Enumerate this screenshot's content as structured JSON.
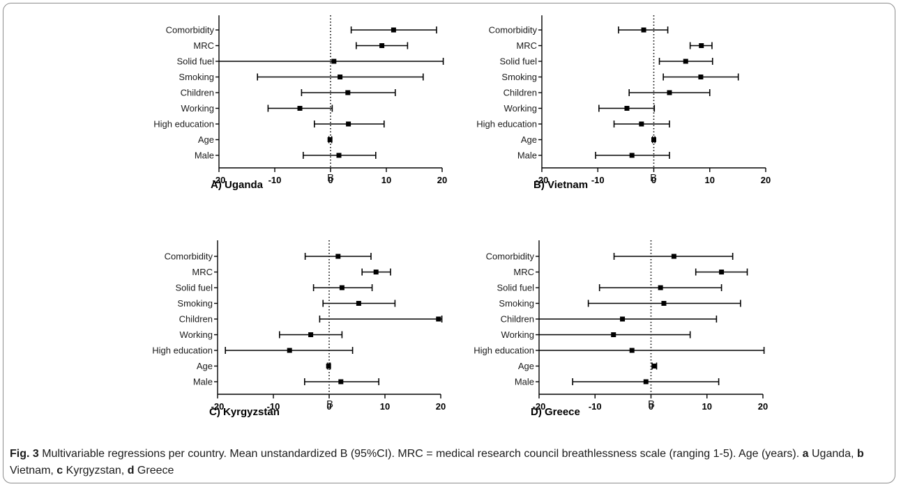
{
  "caption": {
    "fig_label": "Fig. 3",
    "text_1": " Multivariable regressions per country. Mean unstandardized B (95%CI). MRC = medical research council breathlessness scale (ranging 1-5). Age (years). ",
    "a": "a",
    "a_text": " Uganda, ",
    "b": "b",
    "b_text": " Vietnam, ",
    "c": "c",
    "c_text": " Kyrgyzstan, ",
    "d": "d",
    "d_text": " Greece"
  },
  "chart_data": [
    {
      "type": "forest",
      "title": "A) Uganda",
      "xlabel": "B",
      "xlim": [
        -20,
        20
      ],
      "xticks": [
        -20,
        -10,
        0,
        10,
        20
      ],
      "reference_line": 0,
      "categories": [
        "Comorbidity",
        "MRC",
        "Solid fuel",
        "Smoking",
        "Children",
        "Working",
        "High education",
        "Age",
        "Male"
      ],
      "estimates": [
        11.3,
        9.2,
        0.6,
        1.7,
        3.1,
        -5.5,
        3.2,
        -0.1,
        1.5
      ],
      "ci_low": [
        3.7,
        4.6,
        -20,
        -13.1,
        -5.2,
        -11.2,
        -2.9,
        -0.3,
        -4.9
      ],
      "ci_high": [
        19.0,
        13.8,
        20.2,
        16.6,
        11.6,
        0.3,
        9.6,
        0.2,
        8.1
      ]
    },
    {
      "type": "forest",
      "title": "B) Vietnam",
      "xlabel": "B",
      "xlim": [
        -20,
        20
      ],
      "xticks": [
        -20,
        -10,
        0,
        10,
        20
      ],
      "reference_line": 0,
      "categories": [
        "Comorbidity",
        "MRC",
        "Solid fuel",
        "Smoking",
        "Children",
        "Working",
        "High education",
        "Age",
        "Male"
      ],
      "estimates": [
        -1.8,
        8.5,
        5.7,
        8.4,
        2.8,
        -4.8,
        -2.2,
        0.0,
        -3.9
      ],
      "ci_low": [
        -6.3,
        6.5,
        1.0,
        1.7,
        -4.4,
        -9.8,
        -7.1,
        -0.2,
        -10.4
      ],
      "ci_high": [
        2.5,
        10.4,
        10.5,
        15.1,
        10.0,
        0.1,
        2.8,
        0.2,
        2.8
      ]
    },
    {
      "type": "forest",
      "title": "C) Kyrgyzstan",
      "xlabel": "B",
      "xlim": [
        -20,
        20
      ],
      "xticks": [
        -20,
        -10,
        0,
        10,
        20
      ],
      "reference_line": 0,
      "categories": [
        "Comorbidity",
        "MRC",
        "Solid fuel",
        "Smoking",
        "Children",
        "Working",
        "High education",
        "Age",
        "Male"
      ],
      "estimates": [
        1.6,
        8.4,
        2.3,
        5.3,
        19.6,
        -3.3,
        -7.1,
        -0.1,
        2.1
      ],
      "ci_low": [
        -4.3,
        5.9,
        -2.8,
        -1.1,
        -1.7,
        -8.9,
        -18.6,
        -0.3,
        -4.4
      ],
      "ci_high": [
        7.5,
        11.0,
        7.7,
        11.8,
        20.2,
        2.3,
        4.2,
        0.2,
        8.9
      ]
    },
    {
      "type": "forest",
      "title": "D) Greece",
      "xlabel": "B",
      "xlim": [
        -20,
        20
      ],
      "xticks": [
        -20,
        -10,
        0,
        10,
        20
      ],
      "reference_line": 0,
      "categories": [
        "Comorbidity",
        "MRC",
        "Solid fuel",
        "Smoking",
        "Children",
        "Working",
        "High education",
        "Age",
        "Male"
      ],
      "estimates": [
        4.1,
        12.6,
        1.7,
        2.3,
        -5.1,
        -6.7,
        -3.4,
        0.6,
        -0.9
      ],
      "ci_low": [
        -6.6,
        8.0,
        -9.2,
        -11.2,
        -20,
        -20,
        -20,
        0.2,
        -14.0
      ],
      "ci_high": [
        14.6,
        17.2,
        12.6,
        16.0,
        11.7,
        7.0,
        20.2,
        1.0,
        12.1
      ]
    }
  ]
}
